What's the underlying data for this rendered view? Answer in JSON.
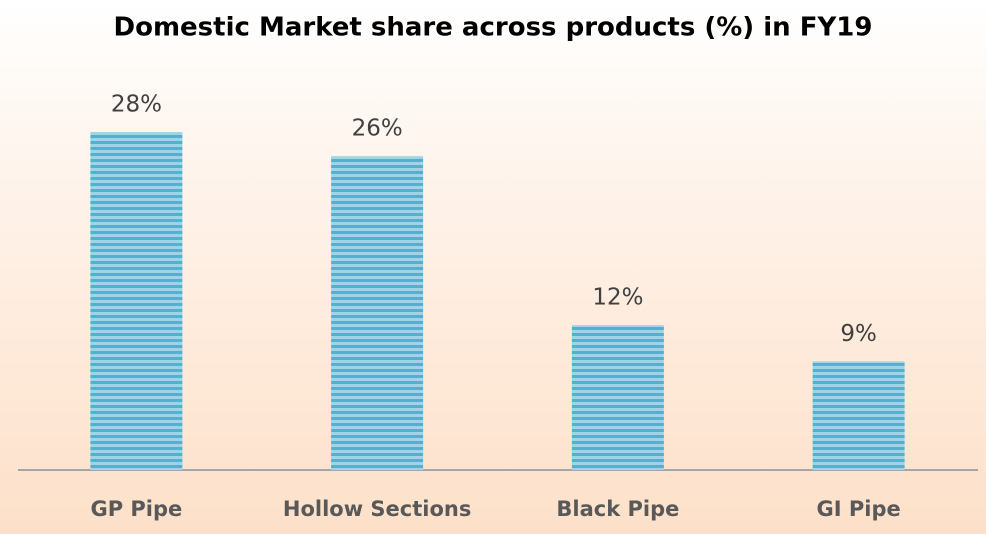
{
  "chart_data": {
    "type": "bar",
    "title": "Domestic Market share across products (%) in FY19",
    "categories": [
      "GP Pipe",
      "Hollow Sections",
      "Black Pipe",
      "GI Pipe"
    ],
    "values": [
      28,
      26,
      12,
      9
    ],
    "value_labels": [
      "28%",
      "26%",
      "12%",
      "9%"
    ],
    "color": "#4fb3cf"
  }
}
